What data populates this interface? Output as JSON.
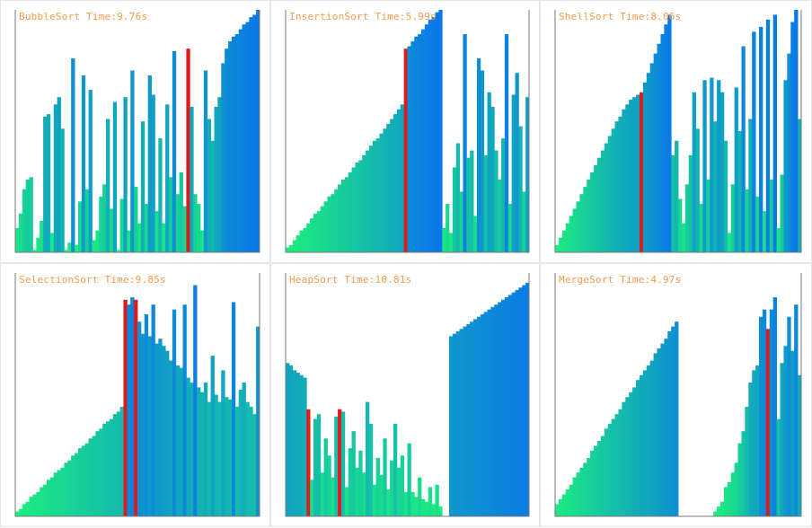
{
  "colors": {
    "low": "#1cf07c",
    "high": "#0a78e8",
    "active": "#e01a1a",
    "axis": "#777777",
    "title": "#f39a4a"
  },
  "panels": [
    {
      "title": "BubbleSort Time:9.76s"
    },
    {
      "title": "InsertionSort Time:5.99s"
    },
    {
      "title": "ShellSort Time:8.06s"
    },
    {
      "title": "SelectionSort Time:9.85s"
    },
    {
      "title": "HeapSort Time:10.81s"
    },
    {
      "title": "MergeSort Time:4.97s"
    }
  ],
  "chart_data": [
    {
      "type": "bar",
      "title": "BubbleSort Time:9.76s",
      "ylim": [
        0,
        100
      ],
      "highlight": [
        49
      ],
      "values": [
        10,
        16,
        26,
        30,
        31,
        1,
        6,
        13,
        56,
        57,
        8,
        61,
        64,
        51,
        1,
        4,
        80,
        3,
        21,
        73,
        26,
        67,
        5,
        9,
        23,
        28,
        55,
        18,
        62,
        1,
        22,
        64,
        9,
        75,
        27,
        12,
        54,
        20,
        73,
        65,
        17,
        47,
        12,
        61,
        31,
        83,
        24,
        33,
        19,
        84,
        60,
        24,
        20,
        9,
        75,
        55,
        46,
        60,
        64,
        78,
        84,
        87,
        89,
        90,
        92,
        94,
        95,
        97,
        98,
        100
      ]
    },
    {
      "type": "bar",
      "title": "InsertionSort Time:5.99s",
      "ylim": [
        0,
        100
      ],
      "highlight": [
        34
      ],
      "values": [
        2,
        3,
        5,
        7,
        9,
        10,
        12,
        14,
        16,
        17,
        19,
        21,
        23,
        24,
        26,
        28,
        30,
        31,
        33,
        35,
        37,
        38,
        40,
        42,
        44,
        46,
        47,
        49,
        51,
        53,
        55,
        57,
        59,
        61,
        84,
        85,
        87,
        89,
        90,
        92,
        94,
        96,
        97,
        99,
        100,
        10,
        20,
        8,
        35,
        45,
        25,
        90,
        39,
        42,
        15,
        80,
        75,
        40,
        66,
        60,
        42,
        30,
        47,
        90,
        20,
        65,
        74,
        52,
        25,
        64
      ]
    },
    {
      "type": "bar",
      "title": "ShellSort Time:8.06s",
      "ylim": [
        0,
        100
      ],
      "highlight": [
        24
      ],
      "values": [
        3,
        6,
        9,
        12,
        15,
        18,
        21,
        24,
        27,
        30,
        33,
        36,
        39,
        42,
        45,
        48,
        51,
        54,
        56,
        59,
        61,
        63,
        64,
        65,
        66,
        70,
        74,
        78,
        82,
        86,
        90,
        94,
        98,
        40,
        46,
        22,
        12,
        28,
        40,
        66,
        51,
        20,
        71,
        30,
        72,
        54,
        71,
        66,
        46,
        8,
        28,
        68,
        50,
        85,
        26,
        55,
        91,
        23,
        93,
        17,
        96,
        30,
        98,
        10,
        32,
        71,
        82,
        95,
        100,
        55
      ]
    },
    {
      "type": "bar",
      "title": "SelectionSort Time:9.85s",
      "ylim": [
        0,
        100
      ],
      "highlight": [
        31,
        34
      ],
      "values": [
        2,
        3,
        5,
        6,
        8,
        9,
        10,
        12,
        13,
        15,
        16,
        18,
        19,
        20,
        22,
        23,
        25,
        26,
        28,
        29,
        30,
        32,
        33,
        35,
        36,
        38,
        39,
        40,
        42,
        43,
        45,
        89,
        87,
        90,
        89,
        80,
        75,
        83,
        74,
        87,
        71,
        73,
        70,
        68,
        64,
        85,
        62,
        61,
        87,
        57,
        55,
        95,
        53,
        51,
        55,
        47,
        66,
        50,
        47,
        60,
        49,
        48,
        88,
        45,
        52,
        55,
        47,
        45,
        42,
        78
      ]
    },
    {
      "type": "bar",
      "title": "HeapSort Time:10.81s",
      "ylim": [
        0,
        100
      ],
      "highlight": [
        6,
        15
      ],
      "values": [
        63,
        62,
        60,
        59,
        58,
        57,
        44,
        15,
        40,
        42,
        18,
        32,
        25,
        16,
        41,
        44,
        43,
        12,
        28,
        35,
        20,
        27,
        18,
        47,
        38,
        13,
        24,
        17,
        32,
        11,
        23,
        38,
        20,
        25,
        10,
        30,
        10,
        8,
        16,
        7,
        6,
        12,
        5,
        13,
        4,
        0,
        0,
        74,
        75,
        76,
        77,
        78,
        79,
        80,
        81,
        82,
        83,
        84,
        85,
        86,
        87,
        88,
        89,
        90,
        91,
        92,
        93,
        94,
        95,
        96
      ]
    },
    {
      "type": "bar",
      "title": "MergeSort Time:4.97s",
      "ylim": [
        0,
        100
      ],
      "highlight": [
        60
      ],
      "values": [
        5,
        7,
        9,
        11,
        13,
        16,
        18,
        20,
        22,
        24,
        27,
        29,
        31,
        33,
        36,
        38,
        40,
        42,
        44,
        47,
        49,
        51,
        53,
        56,
        58,
        60,
        62,
        64,
        67,
        69,
        71,
        73,
        76,
        78,
        80,
        0,
        0,
        0,
        0,
        0,
        0,
        0,
        0,
        0,
        0,
        2,
        4,
        6,
        12,
        14,
        18,
        22,
        30,
        35,
        45,
        55,
        60,
        62,
        82,
        85,
        77,
        85,
        90,
        40,
        63,
        70,
        82,
        68,
        87,
        58
      ]
    }
  ]
}
